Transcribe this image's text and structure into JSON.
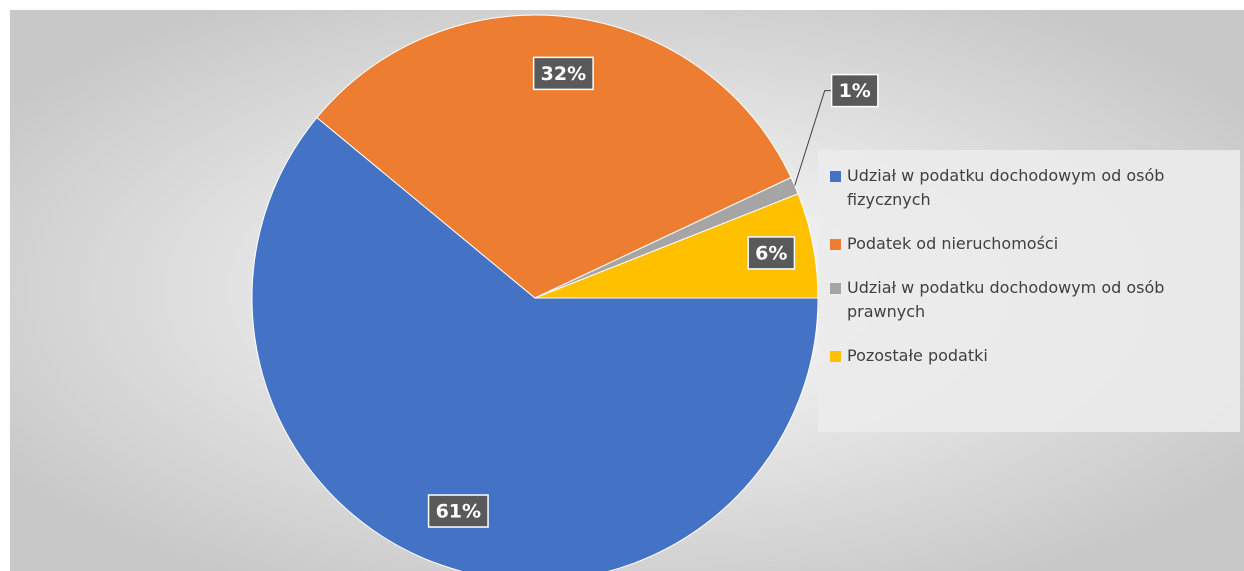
{
  "chart_data": {
    "type": "pie",
    "categories": [
      "Udział w podatku dochodowym od osób fizycznych",
      "Podatek od nieruchomości",
      "Udział w podatku dochodowym od osób prawnych",
      "Pozostałe podatki"
    ],
    "values": [
      61,
      32,
      1,
      6
    ],
    "value_labels": [
      "61%",
      "32%",
      "1%",
      "6%"
    ],
    "colors": [
      "#4472c4",
      "#ed7d31",
      "#a5a5a5",
      "#ffc000"
    ],
    "legend": "right"
  }
}
